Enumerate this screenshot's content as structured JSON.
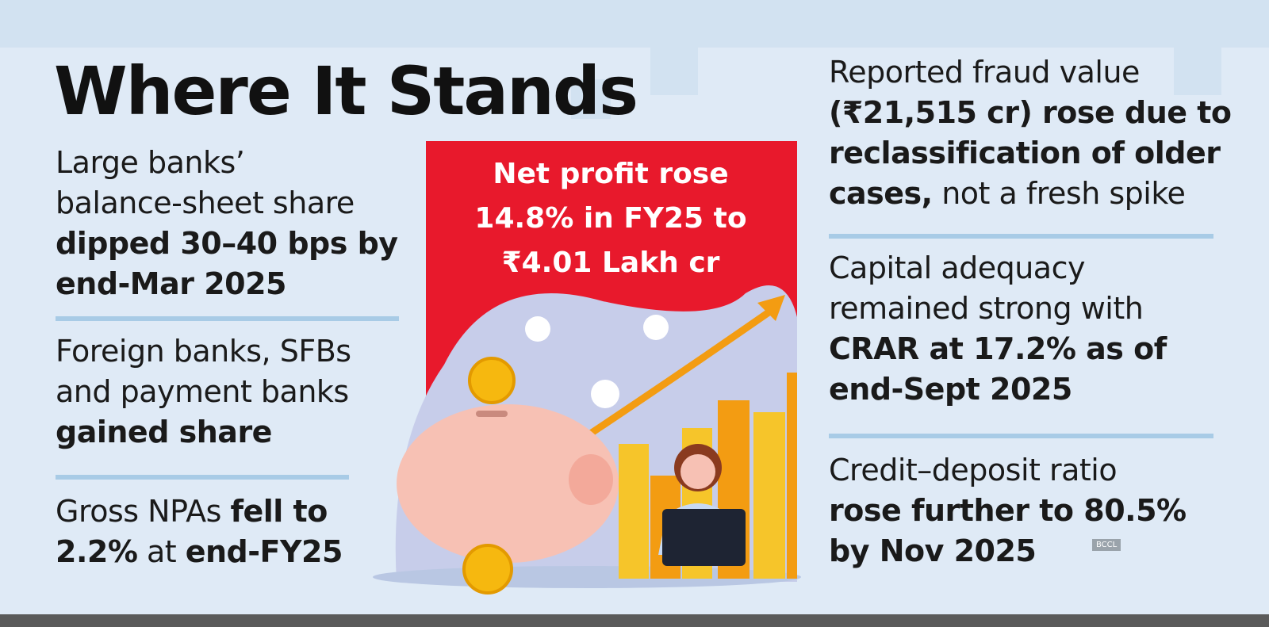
{
  "header": {
    "title": "Where It Stands"
  },
  "left_items": [
    {
      "lines": [
        "Large banks’",
        "balance-sheet share",
        "dipped 30–40 bps by",
        "end-Mar 2025"
      ]
    },
    {
      "lines": [
        "Foreign banks, SFBs",
        "and payment banks",
        "gained share"
      ]
    },
    {
      "lines": [
        "Gross NPAs ",
        "fell to",
        "2.2%",
        " at ",
        "end-FY25"
      ]
    }
  ],
  "center": {
    "lines": [
      "Net profit rose",
      "14.8% in FY25 to",
      "₹4.01 Lakh cr"
    ]
  },
  "right_items": [
    {
      "lines": [
        "Reported fraud value",
        "(₹21,515 cr) rose due to",
        "reclassification of older",
        "cases,",
        " not a fresh spike"
      ]
    },
    {
      "lines": [
        "Capital adequacy",
        "remained strong with",
        "CRAR at 17.2% as of",
        "end-Sept 2025"
      ]
    },
    {
      "lines": [
        "Credit–deposit ratio",
        "rose further to 80.5%",
        "by Nov 2025"
      ]
    }
  ],
  "credit": "BCCL"
}
